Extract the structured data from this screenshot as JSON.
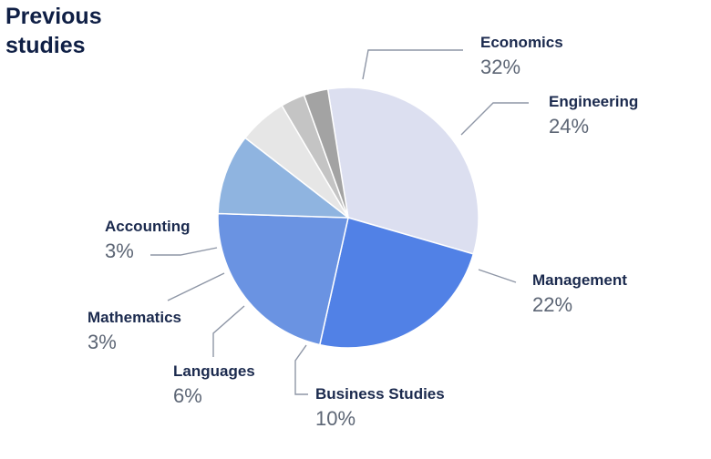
{
  "chart_data": {
    "type": "pie",
    "title_lines": [
      "Previous",
      "studies"
    ],
    "slices": [
      {
        "label": "Economics",
        "value": 32,
        "display": "32%",
        "color": "#dcdff0"
      },
      {
        "label": "Engineering",
        "value": 24,
        "display": "24%",
        "color": "#5181e6"
      },
      {
        "label": "Management",
        "value": 22,
        "display": "22%",
        "color": "#6a93e2"
      },
      {
        "label": "Business Studies",
        "value": 10,
        "display": "10%",
        "color": "#8fb4e0"
      },
      {
        "label": "Languages",
        "value": 6,
        "display": "6%",
        "color": "#e6e6e6"
      },
      {
        "label": "Mathematics",
        "value": 3,
        "display": "3%",
        "color": "#c4c4c4"
      },
      {
        "label": "Accounting",
        "value": 3,
        "display": "3%",
        "color": "#a3a3a3"
      }
    ]
  }
}
